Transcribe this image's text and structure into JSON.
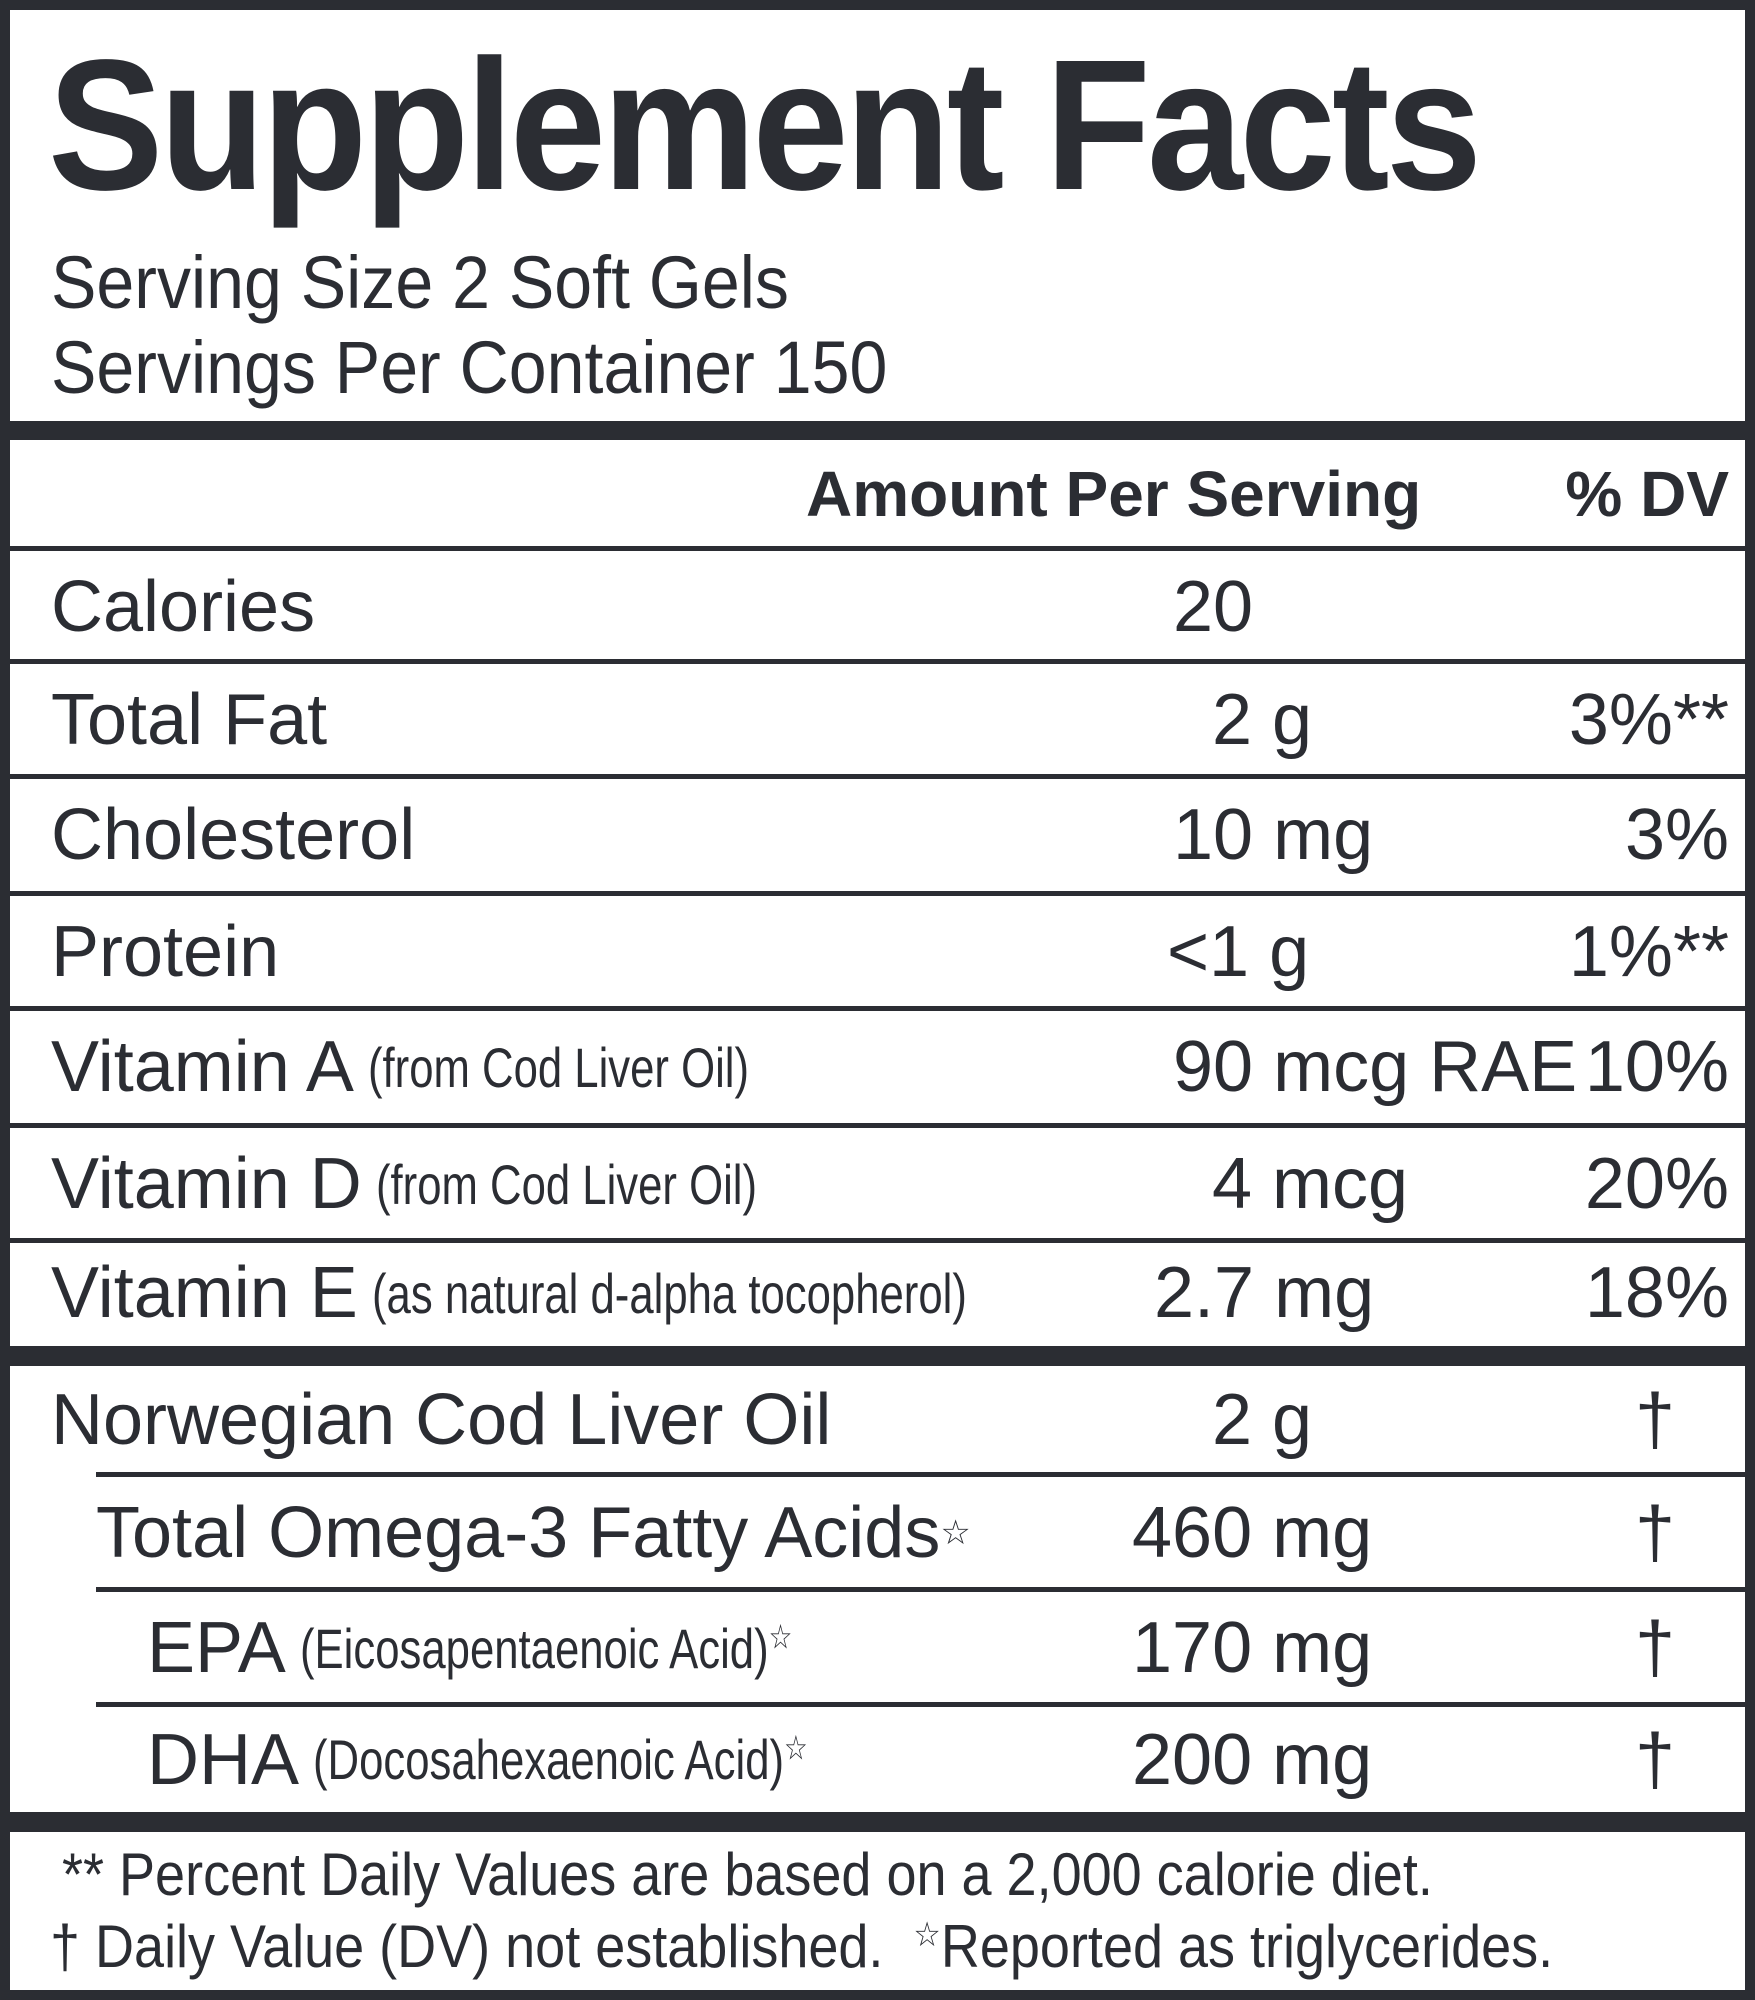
{
  "title": "Supplement Facts",
  "serving_size": "Serving Size 2 Soft Gels",
  "servings_per_container": "Servings Per Container 150",
  "header": {
    "amount": "Amount Per Serving",
    "dv": "% DV"
  },
  "rows": [
    {
      "name": "Calories",
      "note": "",
      "amount": "20",
      "dv": ""
    },
    {
      "name": "Total Fat",
      "note": "",
      "amount": "2 g",
      "dv": "3%**"
    },
    {
      "name": "Cholesterol",
      "note": "",
      "amount": "10 mg",
      "dv": "3%"
    },
    {
      "name": "Protein",
      "note": "",
      "amount": "<1 g",
      "dv": "1%**"
    },
    {
      "name": "Vitamin A",
      "note": "(from Cod Liver Oil)",
      "amount": "90 mcg RAE",
      "dv": "10%"
    },
    {
      "name": "Vitamin D",
      "note": "(from Cod Liver Oil)",
      "amount": "4 mcg",
      "dv": "20%"
    },
    {
      "name": "Vitamin E",
      "note": "(as natural d-alpha tocopherol)",
      "amount": "2.7 mg",
      "dv": "18%"
    }
  ],
  "oil_rows": [
    {
      "name": "Norwegian Cod Liver Oil",
      "note": "",
      "star": "",
      "amount": "2 g",
      "dv": "†"
    },
    {
      "name": "Total Omega-3 Fatty Acids",
      "note": "",
      "star": "☆",
      "amount": "460 mg",
      "dv": "†"
    },
    {
      "name": "EPA",
      "note": "(Eicosapentaenoic Acid)",
      "star": "☆",
      "amount": "170 mg",
      "dv": "†"
    },
    {
      "name": "DHA",
      "note": "(Docosahexaenoic Acid)",
      "star": "☆",
      "amount": "200 mg",
      "dv": "†"
    }
  ],
  "footnotes": {
    "line1": "** Percent Daily Values are based on a 2,000 calorie diet.",
    "line2a": "† Daily Value (DV) not established.",
    "star": "☆",
    "line2b": "Reported as triglycerides."
  },
  "colors": {
    "ink": "#2b2d33",
    "background": "#ffffff"
  }
}
